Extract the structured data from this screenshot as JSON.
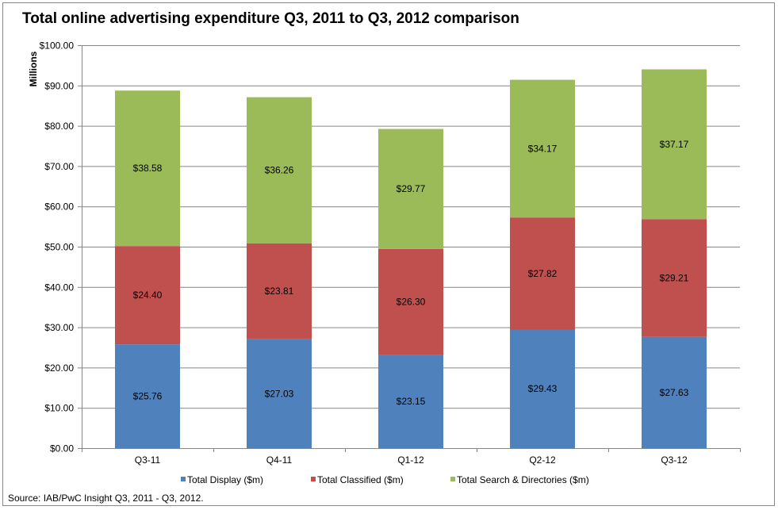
{
  "chart_data": {
    "type": "bar",
    "stacked": true,
    "title": "Total online advertising expenditure Q3, 2011 to Q3, 2012 comparison",
    "ylabel": "Millions",
    "xlabel": "",
    "ylim": [
      0,
      100
    ],
    "ytick_step": 10,
    "yticks": [
      "$0.00",
      "$10.00",
      "$20.00",
      "$30.00",
      "$40.00",
      "$50.00",
      "$60.00",
      "$70.00",
      "$80.00",
      "$90.00",
      "$100.00"
    ],
    "grid": true,
    "legend_position": "bottom",
    "categories": [
      "Q3-11",
      "Q4-11",
      "Q1-12",
      "Q2-12",
      "Q3-12"
    ],
    "series": [
      {
        "name": "Total Display ($m)",
        "color": "#4f81bd",
        "values": [
          25.76,
          27.03,
          23.15,
          29.43,
          27.63
        ],
        "labels": [
          "$25.76",
          "$27.03",
          "$23.15",
          "$29.43",
          "$27.63"
        ]
      },
      {
        "name": "Total Classified ($m)",
        "color": "#c0504d",
        "values": [
          24.4,
          23.81,
          26.3,
          27.82,
          29.21
        ],
        "labels": [
          "$24.40",
          "$23.81",
          "$26.30",
          "$27.82",
          "$29.21"
        ]
      },
      {
        "name": "Total Search & Directories ($m)",
        "color": "#9bbb59",
        "values": [
          38.58,
          36.26,
          29.77,
          34.17,
          37.17
        ],
        "labels": [
          "$38.58",
          "$36.26",
          "$29.77",
          "$34.17",
          "$37.17"
        ]
      }
    ]
  },
  "source": "Source: IAB/PwC Insight Q3, 2011 - Q3, 2012."
}
